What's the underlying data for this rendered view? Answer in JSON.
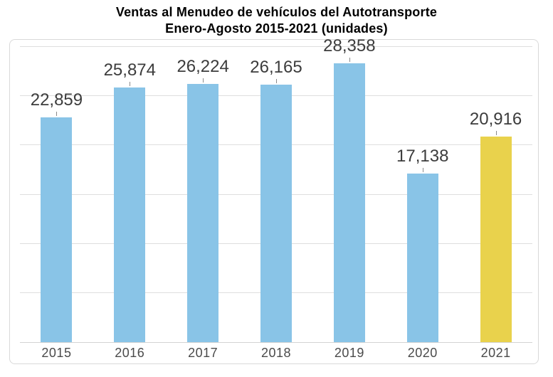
{
  "title": {
    "line1": "Ventas al Menudeo de vehículos del Autotransporte",
    "line2": "Enero-Agosto 2015-2021 (unidades)"
  },
  "chart_data": {
    "type": "bar",
    "title": "Ventas al Menudeo de vehículos del Autotransporte Enero-Agosto 2015-2021 (unidades)",
    "categories": [
      "2015",
      "2016",
      "2017",
      "2018",
      "2019",
      "2020",
      "2021"
    ],
    "values": [
      22859,
      25874,
      26224,
      26165,
      28358,
      17138,
      20916
    ],
    "display_values": [
      "22,859",
      "25,874",
      "26,224",
      "26,165",
      "28,358",
      "17,138",
      "20,916"
    ],
    "xlabel": "",
    "ylabel": "",
    "ylim": [
      0,
      30000
    ],
    "gridline_step": 5000,
    "grid": true,
    "legend": false,
    "bar_colors": [
      "#89C4E7",
      "#89C4E7",
      "#89C4E7",
      "#89C4E7",
      "#89C4E7",
      "#89C4E7",
      "#E9D24C"
    ],
    "default_bar_color": "#89C4E7",
    "highlight_bar_color": "#E9D24C"
  },
  "colors": {
    "accent_blue": "#89C4E7",
    "accent_yellow": "#E9D24C",
    "label_text": "#3C3C3C",
    "axis_text": "#4A4A4A"
  }
}
